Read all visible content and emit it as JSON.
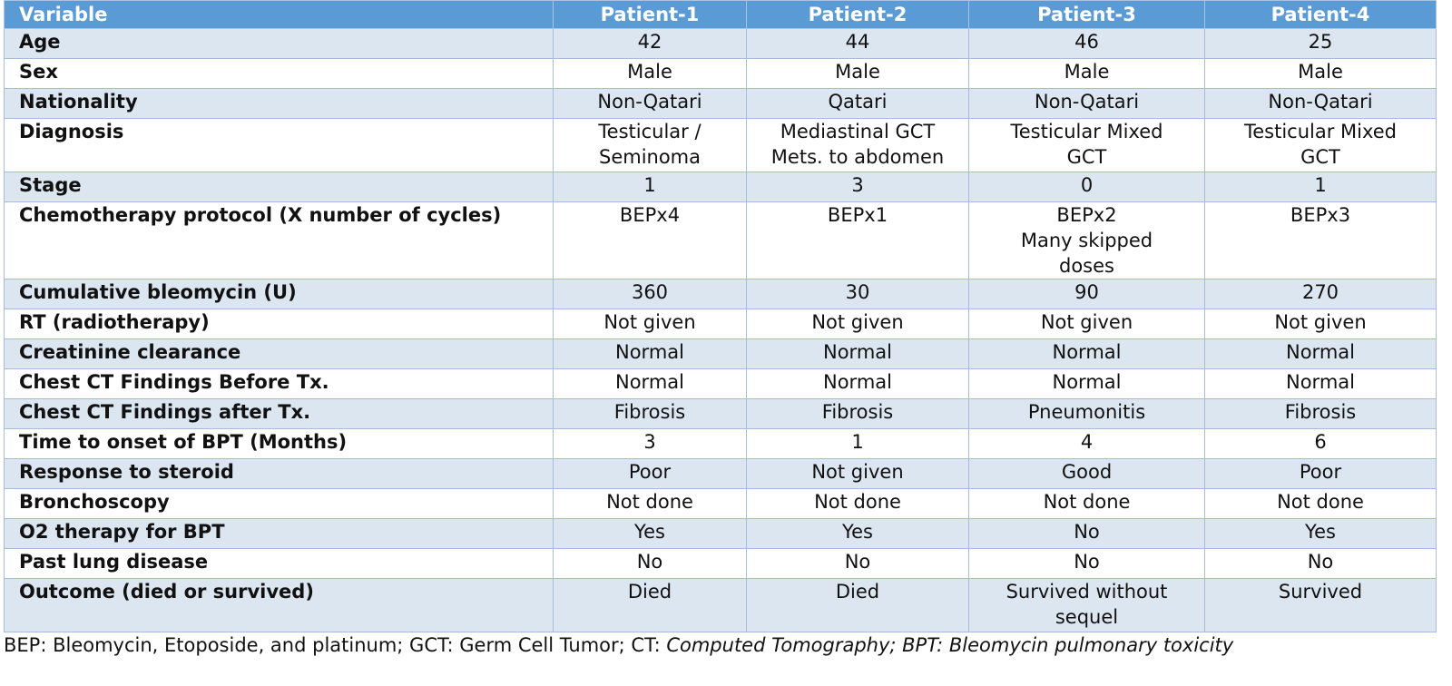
{
  "headers": [
    "Variable",
    "Patient-1",
    "Patient-2",
    "Patient-3",
    "Patient-4"
  ],
  "rows": [
    {
      "label": "Age",
      "values": [
        [
          "42"
        ],
        [
          "44"
        ],
        [
          "46"
        ],
        [
          "25"
        ]
      ]
    },
    {
      "label": "Sex",
      "values": [
        [
          "Male"
        ],
        [
          "Male"
        ],
        [
          "Male"
        ],
        [
          "Male"
        ]
      ]
    },
    {
      "label": "Nationality",
      "values": [
        [
          "Non-Qatari"
        ],
        [
          "Qatari"
        ],
        [
          "Non-Qatari"
        ],
        [
          "Non-Qatari"
        ]
      ]
    },
    {
      "label": "Diagnosis",
      "values": [
        [
          "Testicular /",
          "Seminoma"
        ],
        [
          "Mediastinal GCT",
          "Mets. to abdomen"
        ],
        [
          "Testicular Mixed",
          "GCT"
        ],
        [
          "Testicular Mixed",
          "GCT"
        ]
      ]
    },
    {
      "label": "Stage",
      "values": [
        [
          "1"
        ],
        [
          "3"
        ],
        [
          "0"
        ],
        [
          "1"
        ]
      ]
    },
    {
      "label": "Chemotherapy protocol (X number of cycles)",
      "values": [
        [
          "BEPx4"
        ],
        [
          "BEPx1"
        ],
        [
          "BEPx2",
          "Many skipped",
          "doses"
        ],
        [
          "BEPx3"
        ]
      ]
    },
    {
      "label": "Cumulative bleomycin (U)",
      "values": [
        [
          "360"
        ],
        [
          "30"
        ],
        [
          "90"
        ],
        [
          "270"
        ]
      ]
    },
    {
      "label": "RT (radiotherapy)",
      "values": [
        [
          "Not given"
        ],
        [
          "Not given"
        ],
        [
          "Not given"
        ],
        [
          "Not given"
        ]
      ]
    },
    {
      "label": "Creatinine clearance",
      "values": [
        [
          "Normal"
        ],
        [
          "Normal"
        ],
        [
          "Normal"
        ],
        [
          "Normal"
        ]
      ]
    },
    {
      "label": "Chest CT Findings Before Tx.",
      "values": [
        [
          "Normal"
        ],
        [
          "Normal"
        ],
        [
          "Normal"
        ],
        [
          "Normal"
        ]
      ]
    },
    {
      "label": "Chest CT Findings after Tx.",
      "values": [
        [
          "Fibrosis"
        ],
        [
          "Fibrosis"
        ],
        [
          "Pneumonitis"
        ],
        [
          "Fibrosis"
        ]
      ]
    },
    {
      "label": "Time to onset of BPT (Months)",
      "values": [
        [
          "3"
        ],
        [
          "1"
        ],
        [
          "4"
        ],
        [
          "6"
        ]
      ]
    },
    {
      "label": "Response to steroid",
      "values": [
        [
          "Poor"
        ],
        [
          "Not given"
        ],
        [
          "Good"
        ],
        [
          "Poor"
        ]
      ]
    },
    {
      "label": "Bronchoscopy",
      "values": [
        [
          "Not done"
        ],
        [
          "Not done"
        ],
        [
          "Not done"
        ],
        [
          "Not done"
        ]
      ]
    },
    {
      "label": "O2 therapy for BPT",
      "values": [
        [
          "Yes"
        ],
        [
          "Yes"
        ],
        [
          "No"
        ],
        [
          "Yes"
        ]
      ]
    },
    {
      "label": "Past lung disease",
      "values": [
        [
          "No"
        ],
        [
          "No"
        ],
        [
          "No"
        ],
        [
          "No"
        ]
      ]
    },
    {
      "label": "Outcome (died or survived)",
      "values": [
        [
          "Died"
        ],
        [
          "Died"
        ],
        [
          "Survived without",
          "sequel"
        ],
        [
          "Survived"
        ]
      ]
    }
  ],
  "footnote": {
    "plain": "BEP: Bleomycin, Etoposide, and platinum; GCT: Germ Cell Tumor; CT: ",
    "italic": "Computed Tomography; BPT: Bleomycin pulmonary toxicity"
  },
  "colors": {
    "header_bg": "#5b9bd5",
    "band_bg": "#dce6f1",
    "border": "#a6bcd8"
  }
}
